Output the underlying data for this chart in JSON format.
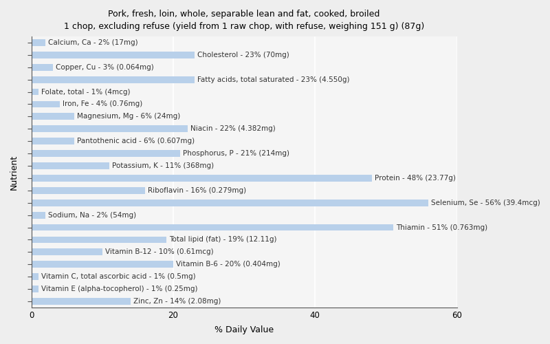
{
  "title": "Pork, fresh, loin, whole, separable lean and fat, cooked, broiled\n1 chop, excluding refuse (yield from 1 raw chop, with refuse, weighing 151 g) (87g)",
  "xlabel": "% Daily Value",
  "ylabel": "Nutrient",
  "xlim": [
    0,
    60
  ],
  "xticks": [
    0,
    20,
    40,
    60
  ],
  "bar_color": "#b8d0ea",
  "background_color": "#eeeeee",
  "plot_bg_color": "#f5f5f5",
  "nutrients": [
    {
      "name": "Calcium, Ca - 2% (17mg)",
      "value": 2
    },
    {
      "name": "Cholesterol - 23% (70mg)",
      "value": 23
    },
    {
      "name": "Copper, Cu - 3% (0.064mg)",
      "value": 3
    },
    {
      "name": "Fatty acids, total saturated - 23% (4.550g)",
      "value": 23
    },
    {
      "name": "Folate, total - 1% (4mcg)",
      "value": 1
    },
    {
      "name": "Iron, Fe - 4% (0.76mg)",
      "value": 4
    },
    {
      "name": "Magnesium, Mg - 6% (24mg)",
      "value": 6
    },
    {
      "name": "Niacin - 22% (4.382mg)",
      "value": 22
    },
    {
      "name": "Pantothenic acid - 6% (0.607mg)",
      "value": 6
    },
    {
      "name": "Phosphorus, P - 21% (214mg)",
      "value": 21
    },
    {
      "name": "Potassium, K - 11% (368mg)",
      "value": 11
    },
    {
      "name": "Protein - 48% (23.77g)",
      "value": 48
    },
    {
      "name": "Riboflavin - 16% (0.279mg)",
      "value": 16
    },
    {
      "name": "Selenium, Se - 56% (39.4mcg)",
      "value": 56
    },
    {
      "name": "Sodium, Na - 2% (54mg)",
      "value": 2
    },
    {
      "name": "Thiamin - 51% (0.763mg)",
      "value": 51
    },
    {
      "name": "Total lipid (fat) - 19% (12.11g)",
      "value": 19
    },
    {
      "name": "Vitamin B-12 - 10% (0.61mcg)",
      "value": 10
    },
    {
      "name": "Vitamin B-6 - 20% (0.404mg)",
      "value": 20
    },
    {
      "name": "Vitamin C, total ascorbic acid - 1% (0.5mg)",
      "value": 1
    },
    {
      "name": "Vitamin E (alpha-tocopherol) - 1% (0.25mg)",
      "value": 1
    },
    {
      "name": "Zinc, Zn - 14% (2.08mg)",
      "value": 14
    }
  ],
  "title_fontsize": 9,
  "label_fontsize": 7.5,
  "tick_fontsize": 8.5,
  "axis_label_fontsize": 9
}
